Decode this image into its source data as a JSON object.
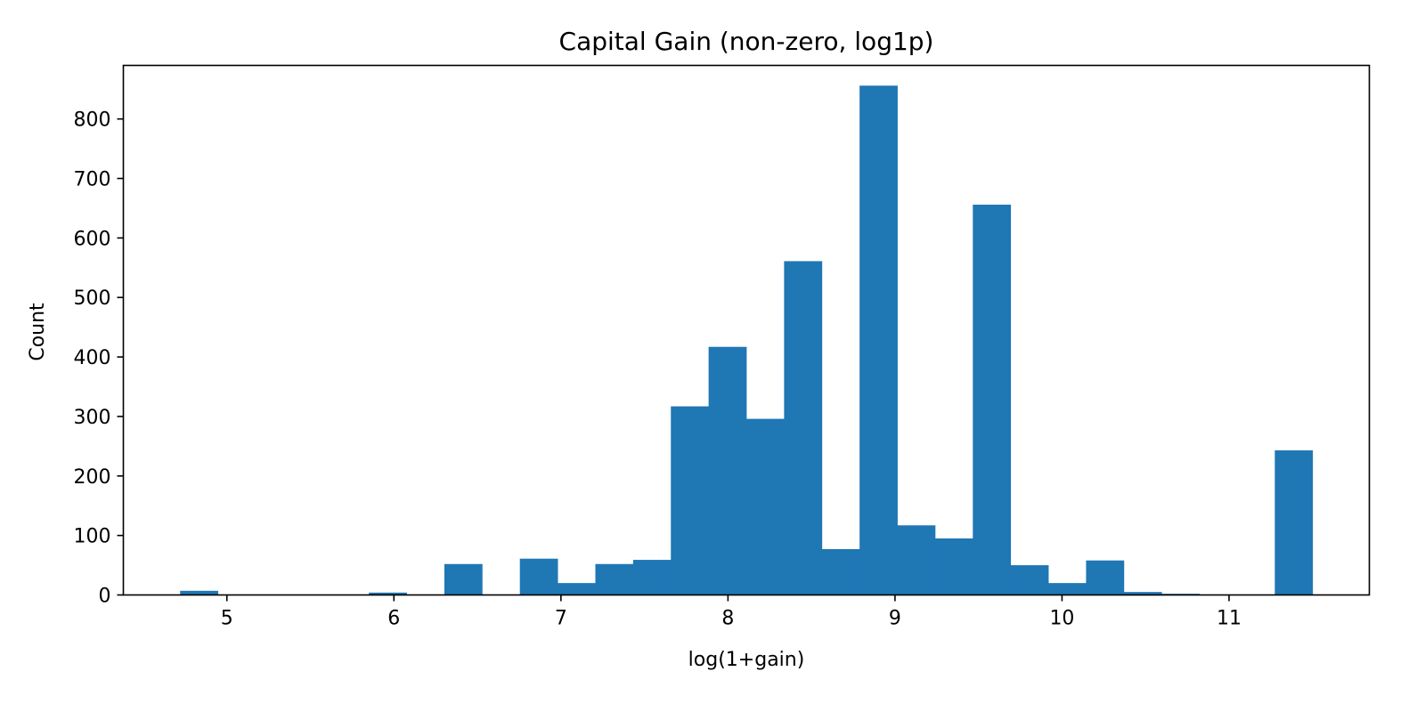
{
  "chart_data": {
    "type": "bar",
    "title": "Capital Gain (non-zero, log1p)",
    "xlabel": "log(1+gain)",
    "ylabel": "Count",
    "xlim": [
      4.38,
      11.84
    ],
    "ylim": [
      0,
      890
    ],
    "xticks": [
      5,
      6,
      7,
      8,
      9,
      10,
      11
    ],
    "yticks": [
      0,
      100,
      200,
      300,
      400,
      500,
      600,
      700,
      800
    ],
    "grid": false,
    "bar_color": "#1f77b4",
    "bin_edges": [
      4.72,
      4.946,
      5.172,
      5.398,
      5.624,
      5.85,
      6.076,
      6.302,
      6.528,
      6.754,
      6.98,
      7.206,
      7.432,
      7.658,
      7.884,
      8.11,
      8.336,
      8.562,
      8.788,
      9.014,
      9.24,
      9.466,
      9.692,
      9.918,
      10.144,
      10.37,
      10.596,
      10.822,
      11.048,
      11.274,
      11.5
    ],
    "counts": [
      7,
      0,
      0,
      0,
      0,
      4,
      0,
      52,
      0,
      61,
      20,
      52,
      59,
      317,
      417,
      296,
      561,
      77,
      856,
      117,
      95,
      656,
      50,
      20,
      58,
      5,
      2,
      0,
      0,
      243
    ]
  }
}
